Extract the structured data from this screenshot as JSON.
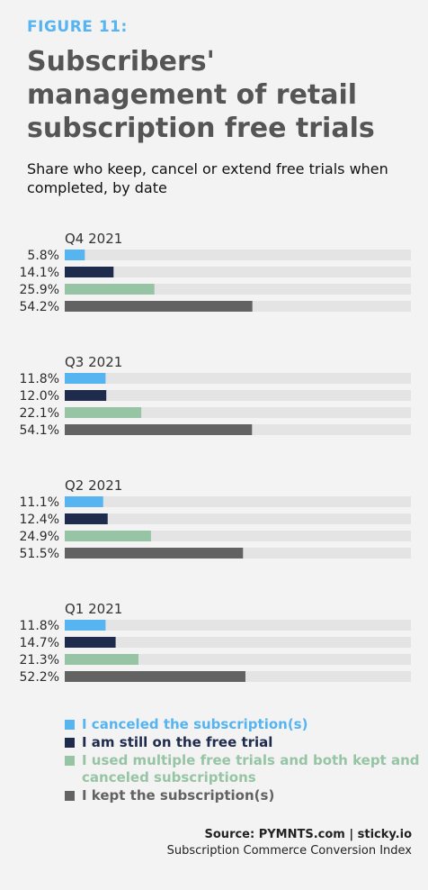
{
  "header": {
    "figure_label": "FIGURE 11:",
    "title": "Subscribers' management of retail subscription free trials",
    "subtitle": "Share who keep, cancel or extend free trials when completed, by date"
  },
  "colors": {
    "canceled": "#56b4f0",
    "still_on_trial": "#1e2b4d",
    "multiple": "#96c4a4",
    "kept": "#626262",
    "track": "#e4e4e4"
  },
  "chart_data": {
    "type": "bar",
    "orientation": "horizontal",
    "xlim": [
      0,
      100
    ],
    "groups": [
      {
        "label": "Q4 2021",
        "values": [
          5.8,
          14.1,
          25.9,
          54.2
        ],
        "value_labels": [
          "5.8%",
          "14.1%",
          "25.9%",
          "54.2%"
        ]
      },
      {
        "label": "Q3 2021",
        "values": [
          11.8,
          12.0,
          22.1,
          54.1
        ],
        "value_labels": [
          "11.8%",
          "12.0%",
          "22.1%",
          "54.1%"
        ]
      },
      {
        "label": "Q2 2021",
        "values": [
          11.1,
          12.4,
          24.9,
          51.5
        ],
        "value_labels": [
          "11.1%",
          "12.4%",
          "24.9%",
          "51.5%"
        ]
      },
      {
        "label": "Q1 2021",
        "values": [
          11.8,
          14.7,
          21.3,
          52.2
        ],
        "value_labels": [
          "11.8%",
          "14.7%",
          "21.3%",
          "52.2%"
        ]
      }
    ],
    "series": [
      {
        "name": "I canceled the subscription(s)",
        "color": "#56b4f0"
      },
      {
        "name": "I am still on the free trial",
        "color": "#1e2b4d"
      },
      {
        "name": "I used multiple free trials and both kept and canceled subscriptions",
        "color": "#96c4a4"
      },
      {
        "name": "I kept the subscription(s)",
        "color": "#626262"
      }
    ],
    "legend_position": "bottom"
  },
  "source": {
    "line1": "Source: PYMNTS.com  |  sticky.io",
    "line2": "Subscription Commerce Conversion Index"
  }
}
